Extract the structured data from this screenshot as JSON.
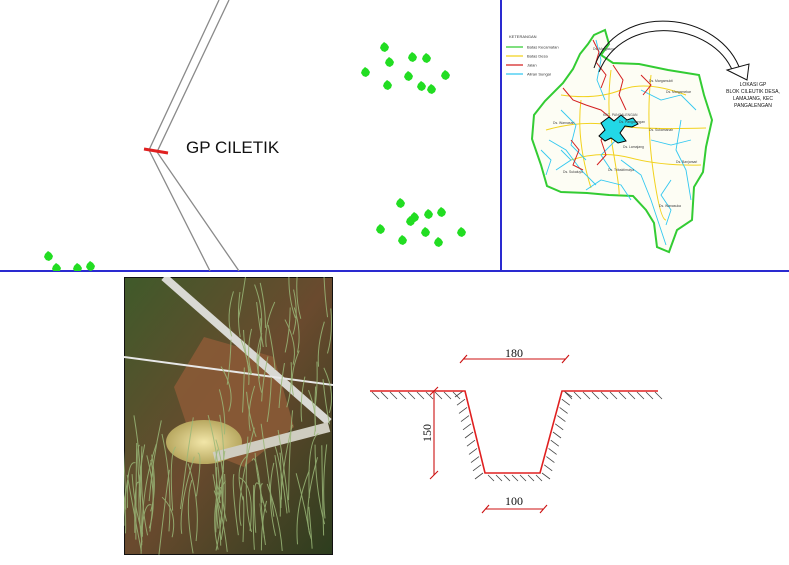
{
  "site_plan": {
    "label": "GP CILETIK",
    "colors": {
      "canal": "#888888",
      "marker": "#e02020",
      "tree": "#22dd22"
    }
  },
  "location_map": {
    "legend": {
      "title": "KETERANGAN",
      "items": [
        {
          "label": "Batas Kecamatan",
          "color": "#33cc33"
        },
        {
          "label": "Batas Desa",
          "color": "#f2d21e"
        },
        {
          "label": "Jalan",
          "color": "#d42020"
        },
        {
          "label": "Aliran Sungai",
          "color": "#33c8f0"
        }
      ]
    },
    "callout": [
      "LOKASI GP",
      "BLOK CILEUTIK DESA,",
      "LAMAJANG, KEC",
      "PANGALENGAN"
    ],
    "village_labels": [
      "Ds. Margamukti",
      "Ds. Margamekar",
      "Ds. Margaluyu",
      "KEC. PANGALENGAN",
      "Ds. Pangalengan",
      "Ds. Warnasari",
      "Ds. Sukamanah",
      "Ds. Lamajang",
      "Ds. Tribaktimulya",
      "Ds. Banjarsari",
      "Ds. Sukaluyu",
      "Ds. Wanasuka"
    ]
  },
  "cross_section": {
    "top_width": "180",
    "bottom_width": "100",
    "depth": "150",
    "colors": {
      "profile": "#e02020",
      "dimension": "#cc1111",
      "ground": "#444444"
    }
  }
}
